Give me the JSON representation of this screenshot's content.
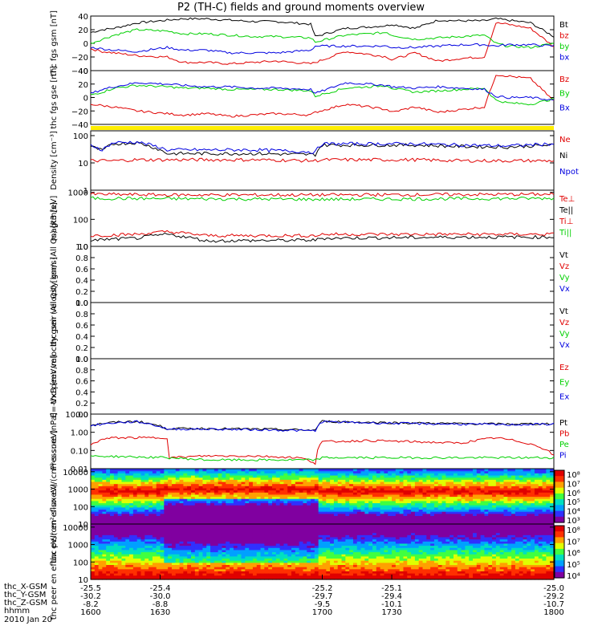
{
  "title": "P2 (TH-C) fields and ground moments overview",
  "colors": {
    "black": "#000000",
    "red": "#e00000",
    "green": "#00d000",
    "blue": "#0000e0",
    "yellow": "#ffee00"
  },
  "chart_data": [
    {
      "type": "line",
      "panel": "fgs_gsm",
      "ylabel": "thc fgs gsm [nT]",
      "ylim": [
        -40,
        40
      ],
      "yticks": [
        "40",
        "20",
        "0",
        "−20",
        "−40"
      ],
      "legend": [
        {
          "name": "Bt",
          "color": "#000000"
        },
        {
          "name": "bz",
          "color": "#e00000"
        },
        {
          "name": "by",
          "color": "#00d000"
        },
        {
          "name": "bx",
          "color": "#0000e0"
        }
      ],
      "series": [
        {
          "name": "Bt",
          "x": [
            1600,
            1605,
            1610,
            1620,
            1633,
            1640,
            1650,
            1660,
            1670,
            1680,
            1695,
            1697,
            1710,
            1720,
            1728,
            1730,
            1740,
            1750,
            1760,
            1770,
            1775,
            1780,
            1790,
            1800
          ],
          "values": [
            16,
            20,
            22,
            30,
            34,
            36,
            36,
            34,
            32,
            32,
            28,
            10,
            22,
            24,
            26,
            28,
            22,
            34,
            33,
            33,
            36,
            34,
            30,
            10
          ]
        },
        {
          "name": "bz",
          "x": [
            1600,
            1605,
            1610,
            1620,
            1633,
            1640,
            1650,
            1660,
            1670,
            1680,
            1695,
            1697,
            1710,
            1720,
            1728,
            1730,
            1740,
            1750,
            1760,
            1770,
            1775,
            1780,
            1790,
            1800
          ],
          "values": [
            -8,
            -12,
            -14,
            -18,
            -20,
            -28,
            -28,
            -30,
            -28,
            -26,
            -30,
            -28,
            -12,
            -16,
            -20,
            -24,
            -14,
            -26,
            -22,
            -20,
            30,
            28,
            22,
            -5
          ]
        },
        {
          "name": "by",
          "x": [
            1600,
            1605,
            1610,
            1620,
            1633,
            1640,
            1650,
            1660,
            1670,
            1680,
            1695,
            1697,
            1710,
            1720,
            1728,
            1730,
            1740,
            1750,
            1760,
            1770,
            1775,
            1780,
            1790,
            1800
          ],
          "values": [
            0,
            6,
            12,
            20,
            18,
            14,
            14,
            12,
            10,
            10,
            8,
            2,
            12,
            14,
            16,
            12,
            6,
            8,
            10,
            12,
            0,
            -4,
            -6,
            0
          ]
        },
        {
          "name": "bx",
          "x": [
            1600,
            1605,
            1610,
            1620,
            1633,
            1640,
            1650,
            1660,
            1670,
            1680,
            1695,
            1697,
            1710,
            1720,
            1728,
            1730,
            1740,
            1750,
            1760,
            1770,
            1775,
            1780,
            1790,
            1800
          ],
          "values": [
            -6,
            -8,
            -10,
            -12,
            -6,
            -10,
            -10,
            -14,
            -14,
            -14,
            -10,
            -4,
            -4,
            -4,
            -4,
            -6,
            -6,
            -4,
            -2,
            -2,
            -4,
            -2,
            -2,
            -4
          ]
        }
      ]
    },
    {
      "type": "line",
      "panel": "fgs_gse",
      "ylabel": "thc fgs gse [nT]",
      "ylim": [
        -40,
        40
      ],
      "yticks": [
        "40",
        "20",
        "0",
        "−20",
        "−40"
      ],
      "legend": [
        {
          "name": "Bz",
          "color": "#e00000"
        },
        {
          "name": "By",
          "color": "#00d000"
        },
        {
          "name": "Bx",
          "color": "#0000e0"
        }
      ],
      "series": [
        {
          "name": "Bz",
          "x": [
            1600,
            1605,
            1610,
            1620,
            1633,
            1640,
            1650,
            1660,
            1670,
            1680,
            1695,
            1697,
            1710,
            1720,
            1728,
            1730,
            1740,
            1750,
            1760,
            1770,
            1775,
            1780,
            1790,
            1800
          ],
          "values": [
            -10,
            -12,
            -14,
            -20,
            -24,
            -26,
            -24,
            -28,
            -26,
            -24,
            -26,
            -22,
            -10,
            -14,
            -18,
            -22,
            -14,
            -22,
            -18,
            -14,
            34,
            32,
            28,
            -5
          ]
        },
        {
          "name": "By",
          "x": [
            1600,
            1605,
            1610,
            1620,
            1633,
            1640,
            1650,
            1660,
            1670,
            1680,
            1695,
            1697,
            1710,
            1720,
            1728,
            1730,
            1740,
            1750,
            1760,
            1770,
            1775,
            1780,
            1790,
            1800
          ],
          "values": [
            4,
            8,
            14,
            18,
            16,
            14,
            14,
            12,
            12,
            12,
            10,
            2,
            14,
            16,
            18,
            14,
            8,
            10,
            12,
            14,
            -4,
            -8,
            -10,
            -2
          ]
        },
        {
          "name": "Bx",
          "x": [
            1600,
            1605,
            1610,
            1620,
            1633,
            1640,
            1650,
            1660,
            1670,
            1680,
            1695,
            1697,
            1710,
            1720,
            1728,
            1730,
            1740,
            1750,
            1760,
            1770,
            1775,
            1780,
            1790,
            1800
          ],
          "values": [
            6,
            12,
            16,
            22,
            20,
            18,
            16,
            16,
            14,
            14,
            12,
            6,
            22,
            20,
            18,
            16,
            14,
            16,
            14,
            12,
            2,
            0,
            0,
            -4
          ]
        }
      ]
    },
    {
      "type": "line",
      "panel": "density",
      "ylabel": "Density [cm⁻³]",
      "yscale": "log",
      "ylim": [
        1,
        150
      ],
      "yticks": [
        "100",
        "10",
        "1"
      ],
      "legend": [
        {
          "name": "Ne",
          "color": "#e00000"
        },
        {
          "name": "Ni",
          "color": "#000000"
        },
        {
          "name": "Npot",
          "color": "#0000e0"
        }
      ],
      "series": [
        {
          "name": "Ne",
          "x": [
            1600,
            1610,
            1620,
            1633,
            1650,
            1670,
            1697,
            1700,
            1720,
            1740,
            1760,
            1780,
            1800
          ],
          "values": [
            12,
            12,
            13,
            13,
            13,
            13,
            12,
            13,
            13,
            13,
            12,
            12,
            12
          ]
        },
        {
          "name": "Ni",
          "x": [
            1600,
            1605,
            1610,
            1620,
            1633,
            1650,
            1670,
            1697,
            1700,
            1720,
            1740,
            1760,
            1780,
            1800
          ],
          "values": [
            40,
            28,
            50,
            55,
            22,
            22,
            22,
            20,
            45,
            45,
            45,
            40,
            38,
            45
          ]
        },
        {
          "name": "Npot",
          "x": [
            1600,
            1605,
            1610,
            1620,
            1633,
            1650,
            1670,
            1697,
            1700,
            1720,
            1740,
            1760,
            1780,
            1800
          ],
          "values": [
            45,
            30,
            55,
            58,
            30,
            30,
            30,
            25,
            50,
            50,
            50,
            45,
            42,
            50
          ]
        }
      ]
    },
    {
      "type": "line",
      "panel": "temperature",
      "ylabel": "magt3 [eV]",
      "yscale": "log",
      "ylim": [
        10,
        1200
      ],
      "yticks": [
        "1000",
        "100",
        "10"
      ],
      "legend": [
        {
          "name": "Te⊥",
          "color": "#e00000"
        },
        {
          "name": "Te||",
          "color": "#000000"
        },
        {
          "name": "Ti⊥",
          "color": "#e00000"
        },
        {
          "name": "Ti||",
          "color": "#00d000"
        }
      ],
      "series": [
        {
          "name": "Ti⊥",
          "x": [
            1600,
            1633,
            1700,
            1800
          ],
          "values": [
            850,
            800,
            800,
            850
          ]
        },
        {
          "name": "Ti||",
          "x": [
            1600,
            1633,
            1700,
            1800
          ],
          "values": [
            600,
            580,
            550,
            600
          ]
        },
        {
          "name": "Te⊥",
          "x": [
            1600,
            1620,
            1633,
            1650,
            1697,
            1700,
            1760,
            1800
          ],
          "values": [
            25,
            28,
            35,
            25,
            25,
            28,
            28,
            28
          ]
        },
        {
          "name": "Te||",
          "x": [
            1600,
            1620,
            1633,
            1650,
            1697,
            1700,
            1760,
            1800
          ],
          "values": [
            17,
            20,
            28,
            16,
            17,
            20,
            22,
            22
          ]
        }
      ]
    },
    {
      "type": "line",
      "panel": "peir_velocity",
      "ylabel": "thc peir velocity gsm (All Qs) [km/s]",
      "ylim": [
        0,
        1
      ],
      "yticks": [
        "1.0",
        "0.8",
        "0.6",
        "0.4",
        "0.2",
        "0.0"
      ],
      "legend": [
        {
          "name": "Vt",
          "color": "#000000"
        },
        {
          "name": "Vz",
          "color": "#e00000"
        },
        {
          "name": "Vy",
          "color": "#00d000"
        },
        {
          "name": "Vx",
          "color": "#0000e0"
        }
      ],
      "series": []
    },
    {
      "type": "line",
      "panel": "peer_velocity",
      "ylabel": "thc peer velocity gsm (All Qs) [km/s]",
      "ylim": [
        0,
        1
      ],
      "yticks": [
        "1.0",
        "0.8",
        "0.6",
        "0.4",
        "0.2",
        "0.0"
      ],
      "legend": [
        {
          "name": "Vt",
          "color": "#000000"
        },
        {
          "name": "Vz",
          "color": "#e00000"
        },
        {
          "name": "Vy",
          "color": "#00d000"
        },
        {
          "name": "Vx",
          "color": "#0000e0"
        }
      ],
      "series": []
    },
    {
      "type": "line",
      "panel": "efield",
      "ylabel": "E=-VxB [mV/m]",
      "ylim": [
        0,
        1
      ],
      "yticks": [
        "1.0",
        "0.8",
        "0.6",
        "0.4",
        "0.2",
        "0.0"
      ],
      "legend": [
        {
          "name": "Ez",
          "color": "#e00000"
        },
        {
          "name": "Ey",
          "color": "#00d000"
        },
        {
          "name": "Ex",
          "color": "#0000e0"
        }
      ],
      "series": []
    },
    {
      "type": "line",
      "panel": "pressure",
      "ylabel": "Pressure [nPa]",
      "yscale": "log",
      "ylim": [
        0.01,
        10
      ],
      "yticks": [
        "10.00",
        "1.00",
        "0.10",
        "0.01"
      ],
      "legend": [
        {
          "name": "Pt",
          "color": "#000000"
        },
        {
          "name": "Pb",
          "color": "#e00000"
        },
        {
          "name": "Pe",
          "color": "#00d000"
        },
        {
          "name": "Pi",
          "color": "#0000e0"
        }
      ],
      "series": [
        {
          "name": "Pt",
          "x": [
            1600,
            1610,
            1620,
            1633,
            1650,
            1670,
            1697,
            1700,
            1720,
            1740,
            1760,
            1780,
            1800
          ],
          "values": [
            2.5,
            3.5,
            4,
            1.6,
            1.6,
            1.5,
            1.3,
            4,
            3.5,
            3.2,
            3,
            2.8,
            3
          ]
        },
        {
          "name": "Pi",
          "x": [
            1600,
            1610,
            1620,
            1633,
            1650,
            1670,
            1697,
            1700,
            1720,
            1740,
            1760,
            1780,
            1800
          ],
          "values": [
            2.3,
            3.3,
            3.8,
            1.5,
            1.5,
            1.4,
            1.2,
            3.8,
            3.3,
            3.0,
            2.8,
            2.6,
            2.8
          ]
        },
        {
          "name": "Pb",
          "x": [
            1600,
            1605,
            1610,
            1620,
            1633,
            1634,
            1650,
            1670,
            1690,
            1697,
            1700,
            1720,
            1740,
            1760,
            1775,
            1780,
            1800
          ],
          "values": [
            0.2,
            0.4,
            0.5,
            0.5,
            0.5,
            0.04,
            0.05,
            0.05,
            0.04,
            0.02,
            0.3,
            0.35,
            0.3,
            0.25,
            0.5,
            0.4,
            0.05
          ]
        },
        {
          "name": "Pe",
          "x": [
            1600,
            1633,
            1650,
            1697,
            1700,
            1760,
            1800
          ],
          "values": [
            0.05,
            0.04,
            0.03,
            0.03,
            0.04,
            0.04,
            0.04
          ]
        }
      ]
    },
    {
      "type": "heatmap",
      "panel": "peir_eflux",
      "ylabel": "thc peir en eflux eV/(cm²-s-sr-eV)",
      "yscale": "log",
      "ylim": [
        10,
        15000
      ],
      "yticks": [
        "10000",
        "1000",
        "100",
        "10"
      ],
      "colorbar_ticks": [
        "10⁸",
        "10⁷",
        "10⁶",
        "10⁵",
        "10⁴",
        "10³"
      ]
    },
    {
      "type": "heatmap",
      "panel": "peer_eflux",
      "ylabel": "thc peer en eflux eV/(cm²-s-sr-eV)",
      "yscale": "log",
      "ylim": [
        10,
        15000
      ],
      "yticks": [
        "10000",
        "1000",
        "100",
        "10"
      ],
      "colorbar_ticks": [
        "10⁸",
        "10⁷",
        "10⁶",
        "10⁵",
        "10⁴"
      ]
    }
  ],
  "xaxis": {
    "range": [
      1600,
      1800
    ],
    "rows": [
      {
        "label": "thc_X-GSM",
        "values": [
          "-25.5",
          "-25.4",
          "-25.2",
          "-25.1",
          "-25.0"
        ]
      },
      {
        "label": "thc_Y-GSM",
        "values": [
          "-30.2",
          "-30.0",
          "-29.7",
          "-29.4",
          "-29.2"
        ]
      },
      {
        "label": "thc_Z-GSM",
        "values": [
          "-8.2",
          "-8.8",
          "-9.5",
          "-10.1",
          "-10.7"
        ]
      },
      {
        "label": "hhmm",
        "values": [
          "1600",
          "1630",
          "1700",
          "1730",
          "1800"
        ]
      }
    ],
    "date": "2010 Jan 20"
  }
}
